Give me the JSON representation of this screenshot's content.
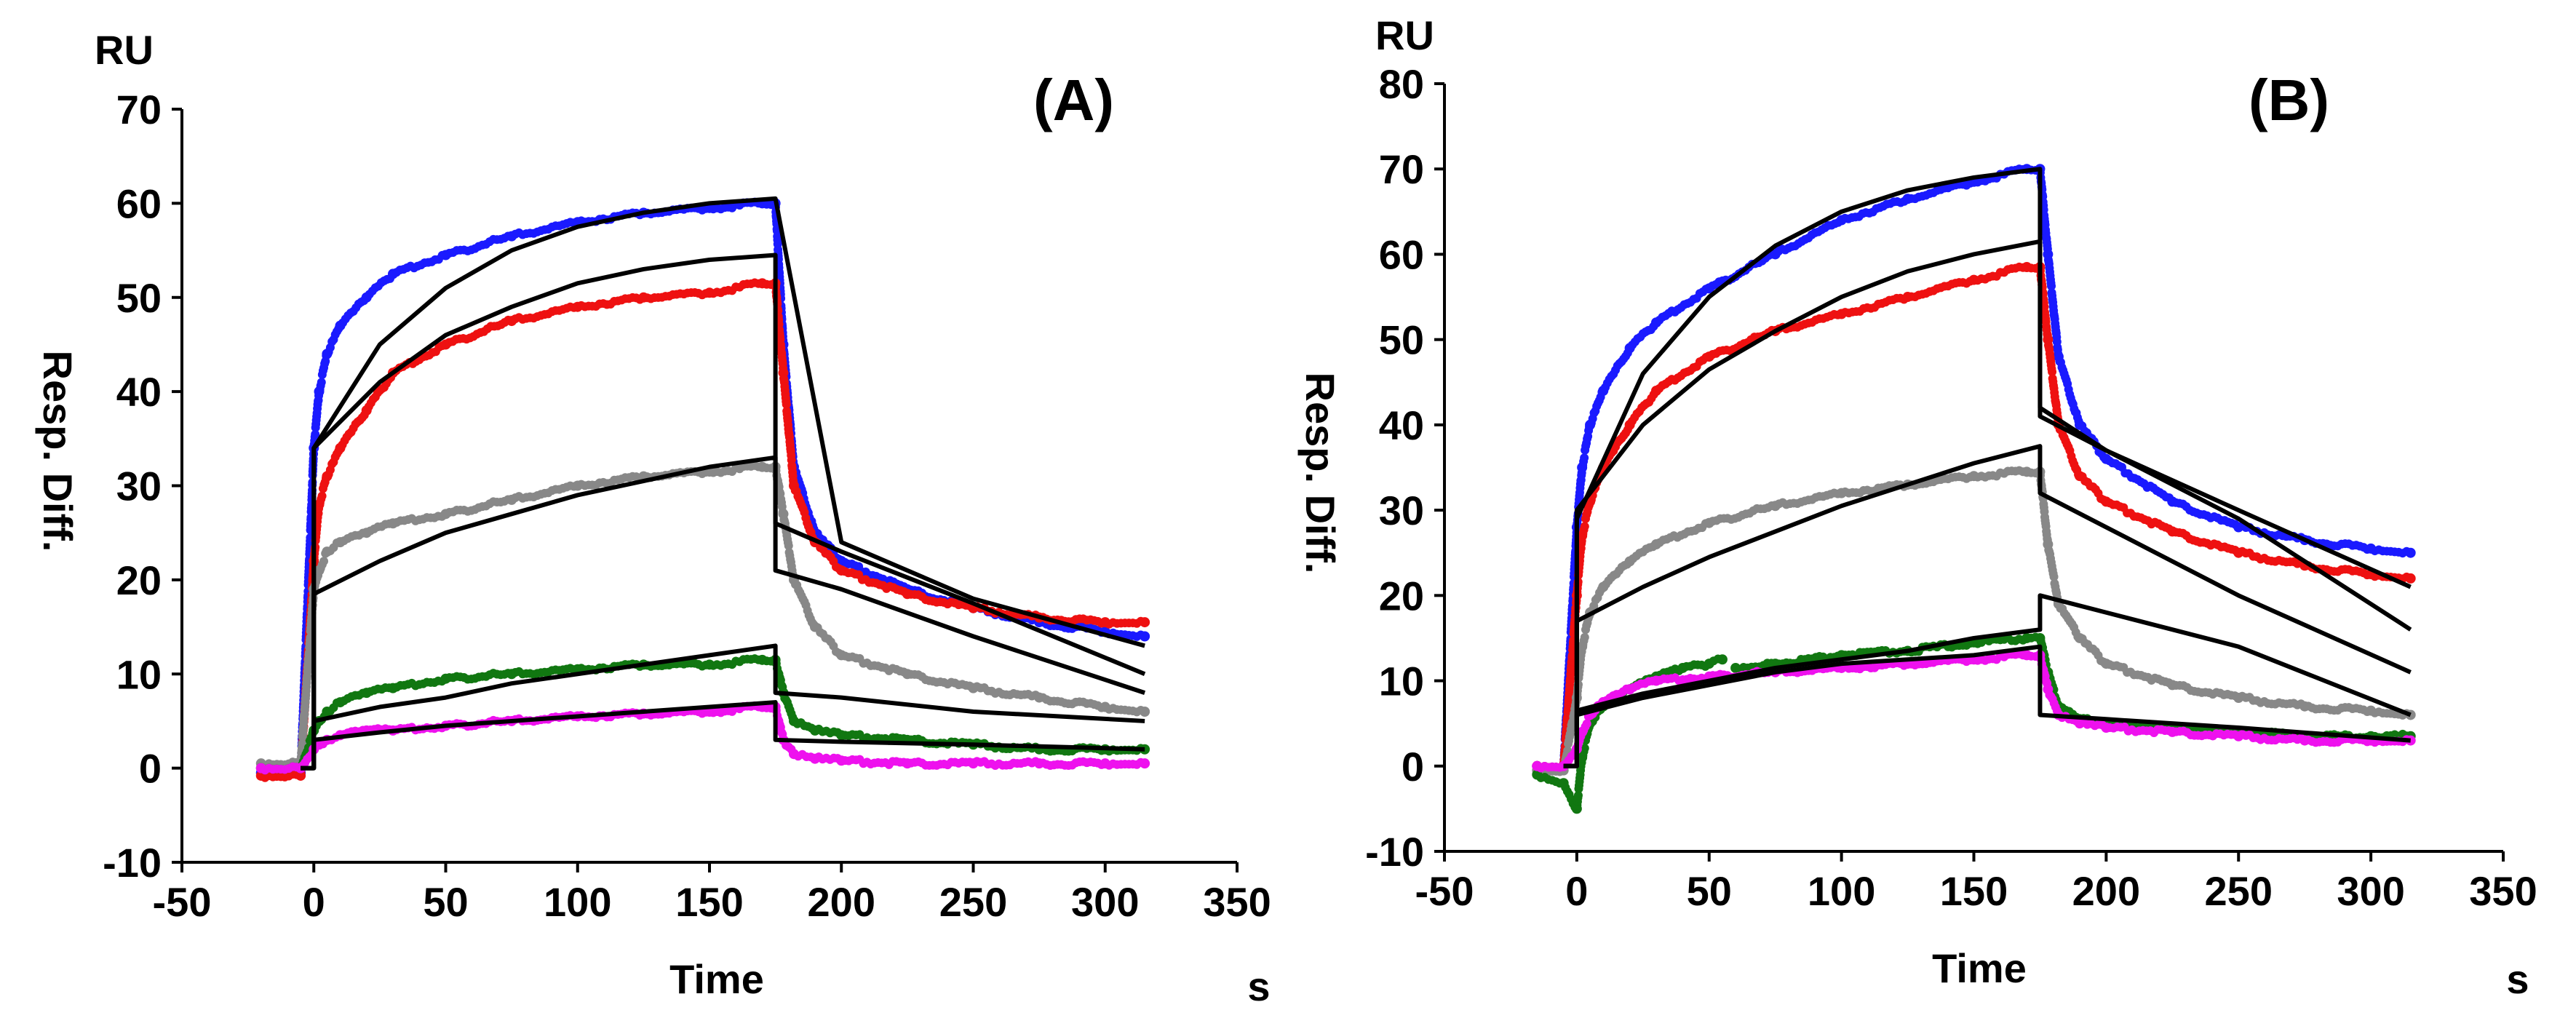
{
  "chart_data": [
    {
      "type": "scatter",
      "panel_label": "(A)",
      "unit_y": "RU",
      "unit_x": "s",
      "ylabel": "Resp. Diff.",
      "xlabel": "Time",
      "xlim": [
        -50,
        350
      ],
      "ylim": [
        -10,
        70
      ],
      "x_ticks": [
        -50,
        0,
        50,
        100,
        150,
        200,
        250,
        300,
        350
      ],
      "y_ticks": [
        -10,
        0,
        10,
        20,
        30,
        40,
        50,
        60,
        70
      ],
      "grid": false,
      "injection_start": 0,
      "injection_end": 175,
      "series": [
        {
          "color": "#1a1aff",
          "x": [
            -20,
            -5,
            0,
            2,
            5,
            10,
            20,
            30,
            50,
            75,
            100,
            125,
            150,
            170,
            175,
            178,
            182,
            190,
            200,
            225,
            250,
            275,
            300,
            315
          ],
          "y": [
            -0.5,
            -0.5,
            34,
            40,
            44,
            47,
            50,
            52.5,
            54.5,
            56.5,
            58,
            59,
            59.5,
            60,
            60,
            45,
            32,
            25,
            22,
            19,
            17,
            15.5,
            14.5,
            14
          ]
        },
        {
          "color": "#ee1111",
          "x": [
            -20,
            -5,
            0,
            2,
            5,
            10,
            20,
            30,
            50,
            75,
            100,
            125,
            150,
            170,
            175,
            178,
            182,
            190,
            200,
            225,
            250,
            275,
            300,
            315
          ],
          "y": [
            -0.8,
            -0.8,
            22,
            28,
            31,
            34,
            38,
            42,
            45,
            47.5,
            49,
            50,
            50.5,
            51.5,
            51.5,
            42,
            30,
            24,
            21,
            18.5,
            17,
            16,
            15.5,
            15.5
          ]
        },
        {
          "color": "#888888",
          "x": [
            -20,
            -5,
            0,
            2,
            5,
            10,
            20,
            30,
            50,
            75,
            100,
            125,
            150,
            170,
            175,
            178,
            182,
            190,
            200,
            225,
            250,
            275,
            300,
            315
          ],
          "y": [
            0.5,
            0.5,
            19,
            21,
            23,
            24,
            25,
            26,
            27,
            28.5,
            30,
            31,
            31.5,
            32,
            32,
            27,
            20,
            15,
            12,
            10,
            8.5,
            7.5,
            6.5,
            6
          ]
        },
        {
          "color": "#117711",
          "x": [
            -20,
            -5,
            0,
            2,
            5,
            10,
            20,
            30,
            50,
            75,
            100,
            125,
            150,
            170,
            175,
            178,
            182,
            190,
            200,
            225,
            250,
            275,
            300,
            315
          ],
          "y": [
            0,
            0,
            4,
            5,
            6,
            7,
            8,
            8.5,
            9.5,
            10,
            10.5,
            11,
            11,
            11.5,
            11.5,
            8,
            5,
            4,
            3.5,
            3,
            2.5,
            2,
            2,
            2
          ]
        },
        {
          "color": "#ee11ee",
          "x": [
            -20,
            -5,
            0,
            2,
            5,
            10,
            20,
            30,
            50,
            75,
            100,
            125,
            150,
            170,
            175,
            178,
            182,
            190,
            200,
            225,
            250,
            275,
            300,
            315
          ],
          "y": [
            0,
            0,
            2,
            2.5,
            3,
            3.5,
            4,
            4,
            4.5,
            5,
            5.5,
            5.8,
            6,
            6.5,
            6.5,
            3,
            1.5,
            1,
            0.8,
            0.5,
            0.5,
            0.5,
            0.5,
            0.5
          ]
        }
      ],
      "fit_curves": [
        {
          "x": [
            -5,
            0,
            0,
            25,
            50,
            75,
            100,
            125,
            150,
            175,
            175,
            200,
            250,
            315
          ],
          "y": [
            0,
            0,
            34,
            45,
            51,
            55,
            57.5,
            59,
            60,
            60.5,
            60.5,
            24,
            18,
            13
          ]
        },
        {
          "x": [
            -5,
            0,
            0,
            25,
            50,
            75,
            100,
            125,
            150,
            175,
            175,
            200,
            250,
            315
          ],
          "y": [
            0,
            0,
            34,
            41,
            46,
            49,
            51.5,
            53,
            54,
            54.5,
            26,
            23,
            17.5,
            10
          ]
        },
        {
          "x": [
            -5,
            0,
            0,
            25,
            50,
            75,
            100,
            125,
            150,
            175,
            175,
            200,
            250,
            315
          ],
          "y": [
            0,
            0,
            18.5,
            22,
            25,
            27,
            29,
            30.5,
            32,
            33,
            21,
            19,
            14,
            8
          ]
        },
        {
          "x": [
            -5,
            0,
            0,
            25,
            50,
            75,
            100,
            125,
            150,
            175,
            175,
            200,
            250,
            315
          ],
          "y": [
            0,
            0,
            5,
            6.5,
            7.5,
            9,
            10,
            11,
            12,
            13,
            8,
            7.5,
            6,
            5
          ]
        },
        {
          "x": [
            -5,
            0,
            0,
            25,
            50,
            75,
            100,
            125,
            150,
            175,
            175,
            200,
            250,
            315
          ],
          "y": [
            0,
            0,
            3,
            3.8,
            4.5,
            5,
            5.5,
            6,
            6.5,
            7,
            3,
            2.8,
            2.5,
            2
          ]
        }
      ]
    },
    {
      "type": "scatter",
      "panel_label": "(B)",
      "unit_y": "RU",
      "unit_x": "s",
      "ylabel": "Resp. Diff.",
      "xlabel": "Time",
      "xlim": [
        -50,
        350
      ],
      "ylim": [
        -10,
        80
      ],
      "x_ticks": [
        -50,
        0,
        50,
        100,
        150,
        200,
        250,
        300,
        350
      ],
      "y_ticks": [
        -10,
        0,
        10,
        20,
        30,
        40,
        50,
        60,
        70,
        80
      ],
      "grid": false,
      "injection_start": 0,
      "injection_end": 175,
      "series": [
        {
          "color": "#1a1aff",
          "x": [
            -15,
            -5,
            0,
            2,
            5,
            10,
            20,
            30,
            50,
            75,
            100,
            125,
            150,
            170,
            175,
            178,
            182,
            190,
            200,
            225,
            250,
            275,
            300,
            315
          ],
          "y": [
            0,
            0,
            28,
            35,
            40,
            44,
            49,
            52,
            56,
            60,
            64,
            66.5,
            68.5,
            70,
            70,
            60,
            48,
            40,
            36,
            31,
            28,
            26.5,
            25.5,
            25
          ]
        },
        {
          "color": "#ee1111",
          "x": [
            -15,
            -5,
            0,
            2,
            5,
            10,
            20,
            30,
            50,
            75,
            100,
            125,
            150,
            170,
            175,
            178,
            182,
            190,
            200,
            225,
            250,
            275,
            300,
            315
          ],
          "y": [
            0,
            0,
            20,
            27,
            31,
            35,
            40,
            44,
            48,
            51,
            53,
            55,
            57,
            58.5,
            58.5,
            50,
            40,
            34,
            31,
            27.5,
            25,
            23.5,
            22.5,
            22
          ]
        },
        {
          "color": "#888888",
          "x": [
            -15,
            -5,
            0,
            2,
            5,
            10,
            20,
            30,
            50,
            75,
            100,
            125,
            150,
            170,
            175,
            178,
            182,
            190,
            200,
            225,
            250,
            275,
            300,
            315
          ],
          "y": [
            -0.5,
            -0.5,
            8,
            14,
            18,
            21,
            24,
            26,
            28.5,
            30.5,
            32,
            33,
            34,
            34.5,
            34.5,
            26,
            19,
            15,
            12,
            9.5,
            8,
            7,
            6.5,
            6
          ]
        },
        {
          "color": "#117711",
          "x": [
            -15,
            -5,
            0,
            2,
            5,
            10,
            20,
            30,
            40,
            50,
            55
          ],
          "y": [
            -1,
            -2,
            -5,
            1,
            5,
            7,
            9,
            10.5,
            11.5,
            12,
            12.5
          ]
        },
        {
          "color": "#117711",
          "x": [
            60,
            75,
            100,
            125,
            150,
            170,
            175,
            178,
            182,
            190,
            200,
            225,
            250,
            275,
            300,
            315
          ],
          "y": [
            11.5,
            12,
            13,
            13.5,
            14.5,
            15,
            15,
            11,
            7,
            5.5,
            5,
            4.5,
            4,
            3.5,
            3.5,
            3.5
          ]
        },
        {
          "color": "#ee11ee",
          "x": [
            -15,
            -5,
            0,
            2,
            5,
            10,
            20,
            30,
            50,
            75,
            100,
            125,
            150,
            170,
            175,
            178,
            182,
            190,
            200,
            225,
            250,
            275,
            300,
            315
          ],
          "y": [
            0,
            0,
            2,
            4,
            6,
            7.5,
            9,
            10,
            10.5,
            11,
            11.5,
            12,
            12.5,
            13,
            13,
            9,
            6,
            5,
            4.5,
            4,
            3.5,
            3,
            3,
            3
          ]
        }
      ],
      "fit_curves": [
        {
          "x": [
            -5,
            0,
            0,
            25,
            50,
            75,
            100,
            125,
            150,
            175,
            175,
            200,
            250,
            315
          ],
          "y": [
            0,
            0,
            29,
            46,
            55,
            61,
            65,
            67.5,
            69,
            70,
            42,
            37,
            30,
            21
          ]
        },
        {
          "x": [
            -5,
            0,
            0,
            25,
            50,
            75,
            100,
            125,
            150,
            175,
            175,
            200,
            250,
            315
          ],
          "y": [
            0,
            0,
            30,
            40,
            46.5,
            51,
            55,
            58,
            60,
            61.5,
            41,
            37,
            29,
            16
          ]
        },
        {
          "x": [
            -5,
            0,
            0,
            25,
            50,
            75,
            100,
            125,
            150,
            175,
            175,
            200,
            250,
            315
          ],
          "y": [
            0,
            0,
            17,
            21,
            24.5,
            27.5,
            30.5,
            33,
            35.5,
            37.5,
            32,
            28,
            20,
            11
          ]
        },
        {
          "x": [
            -5,
            0,
            0,
            25,
            50,
            75,
            100,
            125,
            150,
            175,
            175,
            200,
            250,
            315
          ],
          "y": [
            0,
            0,
            6.5,
            8.5,
            10,
            11.5,
            12.5,
            13.5,
            15,
            16,
            20,
            18,
            14,
            6
          ]
        },
        {
          "x": [
            -5,
            0,
            0,
            25,
            50,
            75,
            100,
            125,
            150,
            175,
            175,
            200,
            250,
            315
          ],
          "y": [
            0,
            0,
            6,
            8,
            9.5,
            11,
            12,
            12.5,
            13,
            14,
            6,
            5.5,
            4.5,
            3
          ]
        }
      ]
    }
  ]
}
